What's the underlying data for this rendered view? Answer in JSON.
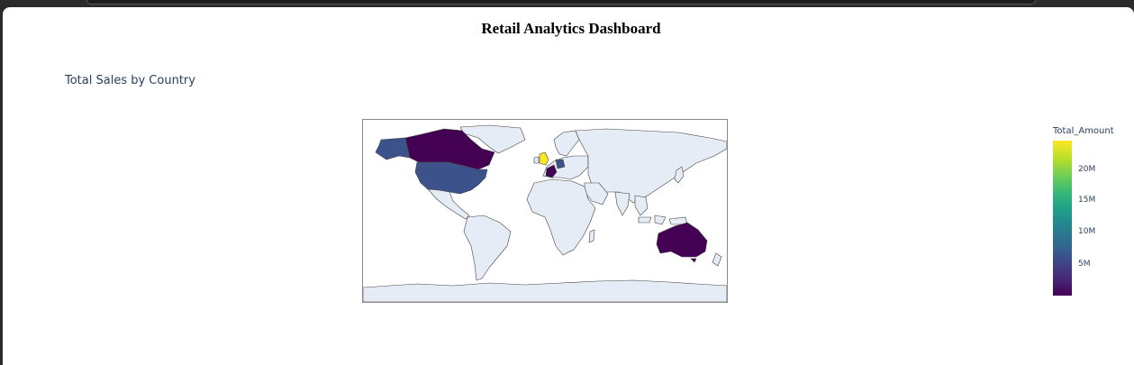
{
  "dashboard": {
    "title": "Retail Analytics Dashboard"
  },
  "chart": {
    "title": "Total Sales by Country",
    "colorbar": {
      "title": "Total_Amount",
      "ticks": [
        "20M",
        "15M",
        "10M",
        "5M"
      ],
      "tick_values": [
        20000000,
        15000000,
        10000000,
        5000000
      ],
      "range": [
        0,
        24000000
      ]
    },
    "colorscale": "Viridis",
    "land_color": "#e5ecf6",
    "highlighted_regions": [
      {
        "region": "United Kingdom",
        "color": "#fde725"
      },
      {
        "region": "Germany",
        "color": "#3b528b"
      },
      {
        "region": "United States",
        "color": "#3b528b"
      },
      {
        "region": "Alaska",
        "color": "#3b528b"
      },
      {
        "region": "Canada",
        "color": "#440154"
      },
      {
        "region": "Australia",
        "color": "#440154"
      },
      {
        "region": "France",
        "color": "#440154"
      }
    ]
  }
}
